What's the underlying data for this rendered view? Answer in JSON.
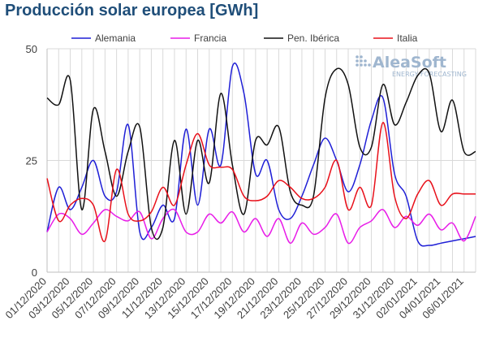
{
  "title": "Producción solar europea [GWh]",
  "logo": {
    "name": "AleaSoft",
    "tagline": "ENERGY FORECASTING"
  },
  "chart_data": {
    "type": "line",
    "title": "Producción solar europea [GWh]",
    "xlabel": "",
    "ylabel": "",
    "ylim": [
      0,
      50
    ],
    "yticks": [
      0,
      25,
      50
    ],
    "grid": true,
    "legend_position": "top",
    "x": [
      "01/12/2020",
      "02/12/2020",
      "03/12/2020",
      "04/12/2020",
      "05/12/2020",
      "06/12/2020",
      "07/12/2020",
      "08/12/2020",
      "09/12/2020",
      "10/12/2020",
      "11/12/2020",
      "12/12/2020",
      "13/12/2020",
      "14/12/2020",
      "15/12/2020",
      "16/12/2020",
      "17/12/2020",
      "18/12/2020",
      "19/12/2020",
      "20/12/2020",
      "21/12/2020",
      "22/12/2020",
      "23/12/2020",
      "24/12/2020",
      "25/12/2020",
      "26/12/2020",
      "27/12/2020",
      "28/12/2020",
      "29/12/2020",
      "30/12/2020",
      "31/12/2020",
      "01/01/2021",
      "02/01/2021",
      "03/01/2021",
      "04/01/2021",
      "05/01/2021",
      "06/01/2021",
      "07/01/2021"
    ],
    "xtick_labels": [
      "01/12/2020",
      "03/12/2020",
      "05/12/2020",
      "07/12/2020",
      "09/12/2020",
      "11/12/2020",
      "13/12/2020",
      "15/12/2020",
      "17/12/2020",
      "19/12/2020",
      "21/12/2020",
      "23/12/2020",
      "25/12/2020",
      "27/12/2020",
      "29/12/2020",
      "31/12/2020",
      "02/01/2021",
      "04/01/2021",
      "06/01/2021"
    ],
    "series": [
      {
        "name": "Alemania",
        "color": "#1f1fd6",
        "values": [
          9,
          19,
          14,
          19,
          25,
          17,
          18,
          33,
          9,
          10,
          15,
          12,
          32,
          15,
          32,
          24,
          46,
          40,
          22,
          25,
          14,
          12,
          17,
          24,
          30,
          25,
          18,
          24,
          34,
          39,
          22,
          17,
          7,
          6,
          6.5,
          7,
          7.5,
          8
        ]
      },
      {
        "name": "Francia",
        "color": "#e81de8",
        "values": [
          9,
          13,
          12,
          8.5,
          11,
          14,
          12.5,
          11.5,
          13.5,
          7.5,
          12,
          14,
          9,
          9,
          13,
          11,
          13.5,
          9,
          12,
          8,
          12,
          6.5,
          11,
          8.5,
          10,
          13,
          6.5,
          10,
          11.5,
          14,
          10,
          12.5,
          10.5,
          13,
          9.5,
          11,
          7,
          12.5
        ]
      },
      {
        "name": "Pen. Ibérica",
        "color": "#111111",
        "values": [
          39,
          37.5,
          43,
          14,
          36.5,
          27,
          17,
          27,
          32.5,
          10,
          10,
          29.5,
          13,
          29.5,
          20,
          40,
          24,
          13,
          29.5,
          28.5,
          32.5,
          18,
          15,
          17,
          39,
          45.5,
          42,
          28,
          28,
          42,
          33,
          38,
          44,
          44.5,
          31.5,
          38.5,
          27,
          27
        ]
      },
      {
        "name": "Italia",
        "color": "#e8101a",
        "values": [
          21,
          11.5,
          15,
          16.5,
          15,
          7,
          23,
          13,
          11.5,
          13.5,
          19,
          15,
          24,
          31,
          24,
          23.5,
          23,
          17,
          16,
          17,
          20.5,
          19,
          16.5,
          16.5,
          19,
          25,
          14,
          19,
          15,
          33.5,
          17,
          12,
          17.5,
          20.5,
          15,
          17.5,
          17.5,
          17.5
        ]
      }
    ]
  }
}
